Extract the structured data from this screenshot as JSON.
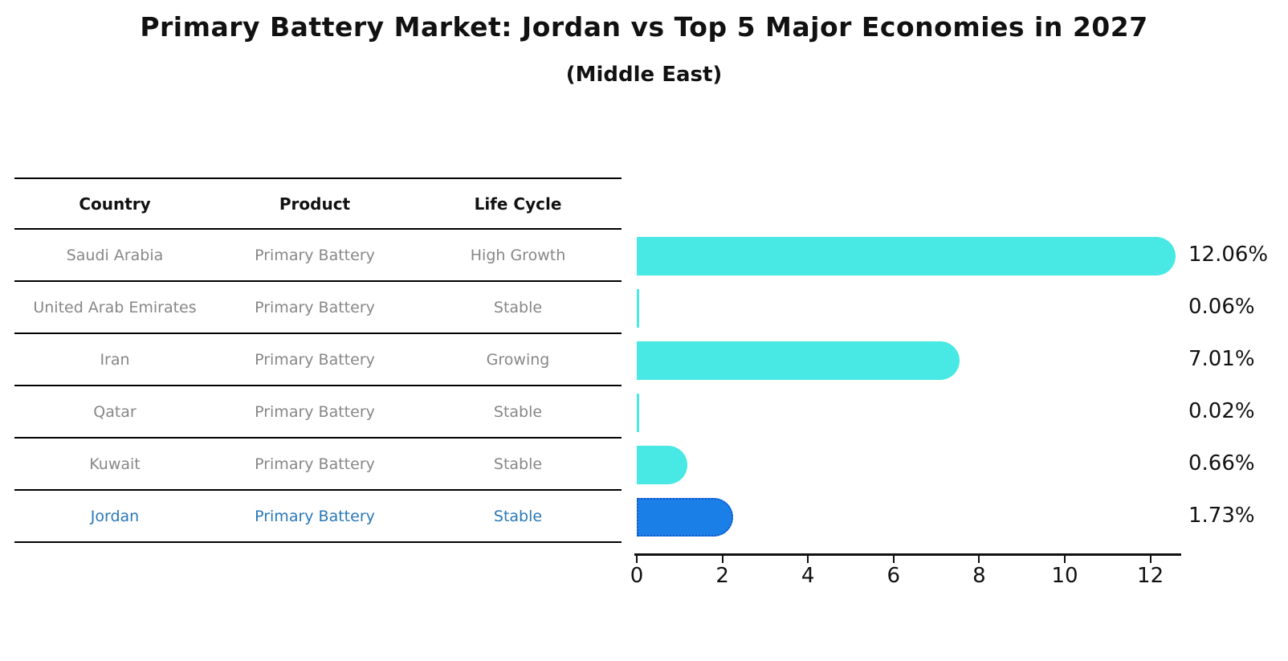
{
  "title": "Primary Battery Market: Jordan vs Top 5 Major Economies in 2027",
  "subtitle": "(Middle East)",
  "table": {
    "headers": [
      "Country",
      "Product",
      "Life Cycle"
    ],
    "rows": [
      {
        "country": "Saudi Arabia",
        "product": "Primary Battery",
        "life_cycle": "High Growth",
        "highlight": false
      },
      {
        "country": "United Arab Emirates",
        "product": "Primary Battery",
        "life_cycle": "Stable",
        "highlight": false
      },
      {
        "country": "Iran",
        "product": "Primary Battery",
        "life_cycle": "Growing",
        "highlight": false
      },
      {
        "country": "Qatar",
        "product": "Primary Battery",
        "life_cycle": "Stable",
        "highlight": false
      },
      {
        "country": "Kuwait",
        "product": "Primary Battery",
        "life_cycle": "Stable",
        "highlight": false
      },
      {
        "country": "Jordan",
        "product": "Primary Battery",
        "life_cycle": "Stable",
        "highlight": true
      }
    ]
  },
  "chart_data": {
    "type": "bar",
    "orientation": "horizontal",
    "title": "Primary Battery Market: Jordan vs Top 5 Major Economies in 2027",
    "subtitle": "(Middle East)",
    "categories": [
      "Saudi Arabia",
      "United Arab Emirates",
      "Iran",
      "Qatar",
      "Kuwait",
      "Jordan"
    ],
    "values": [
      12.06,
      0.06,
      7.01,
      0.02,
      0.66,
      1.73
    ],
    "value_labels": [
      "12.06%",
      "0.06%",
      "7.01%",
      "0.02%",
      "0.66%",
      "1.73%"
    ],
    "xlabel": "",
    "ylabel": "",
    "xlim": [
      0,
      12.7
    ],
    "xticks": [
      0,
      2,
      4,
      6,
      8,
      10,
      12
    ],
    "grid": false,
    "legend": "none",
    "bar_color": "#48e8e4",
    "highlight_index": 5,
    "highlight_color": "#1b7fe8",
    "highlight_edge_color": "#1257c8",
    "highlight_edge_style": "dotted",
    "text_color": "#111111",
    "muted_text_color": "#878787",
    "highlight_text_color": "#2878b8"
  }
}
